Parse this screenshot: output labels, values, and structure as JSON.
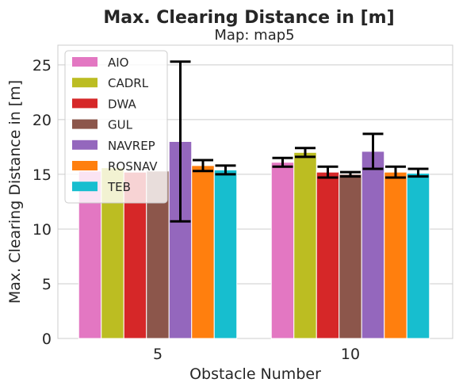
{
  "chart_data": {
    "type": "bar",
    "title": "Max. Clearing Distance in [m]",
    "subtitle": "Map: map5",
    "xlabel": "Obstacle Number",
    "ylabel": "Max. Clearing Distance in [m]",
    "categories": [
      "5",
      "10"
    ],
    "ylim": [
      0,
      26.8
    ],
    "yticks": [
      0,
      5,
      10,
      15,
      20,
      25
    ],
    "grid": true,
    "legend_position": "top-left",
    "series": [
      {
        "name": "AIO",
        "color": "#e377c2",
        "values": [
          15.3,
          16.1
        ],
        "err_low": [
          null,
          15.7
        ],
        "err_high": [
          null,
          16.5
        ]
      },
      {
        "name": "CADRL",
        "color": "#bcbd22",
        "values": [
          15.6,
          17.0
        ],
        "err_low": [
          null,
          16.6
        ],
        "err_high": [
          null,
          17.4
        ]
      },
      {
        "name": "DWA",
        "color": "#d62728",
        "values": [
          15.2,
          15.2
        ],
        "err_low": [
          null,
          14.7
        ],
        "err_high": [
          null,
          15.7
        ]
      },
      {
        "name": "GUL",
        "color": "#8c564b",
        "values": [
          15.3,
          15.0
        ],
        "err_low": [
          null,
          14.8
        ],
        "err_high": [
          null,
          15.2
        ]
      },
      {
        "name": "NAVREP",
        "color": "#9467bd",
        "values": [
          18.0,
          17.1
        ],
        "err_low": [
          10.7,
          15.5
        ],
        "err_high": [
          25.3,
          18.7
        ]
      },
      {
        "name": "ROSNAV",
        "color": "#ff7f0e",
        "values": [
          15.8,
          15.2
        ],
        "err_low": [
          15.3,
          14.7
        ],
        "err_high": [
          16.3,
          15.7
        ]
      },
      {
        "name": "TEB",
        "color": "#17becf",
        "values": [
          15.4,
          15.1
        ],
        "err_low": [
          15.0,
          14.8
        ],
        "err_high": [
          15.8,
          15.5
        ]
      }
    ]
  }
}
